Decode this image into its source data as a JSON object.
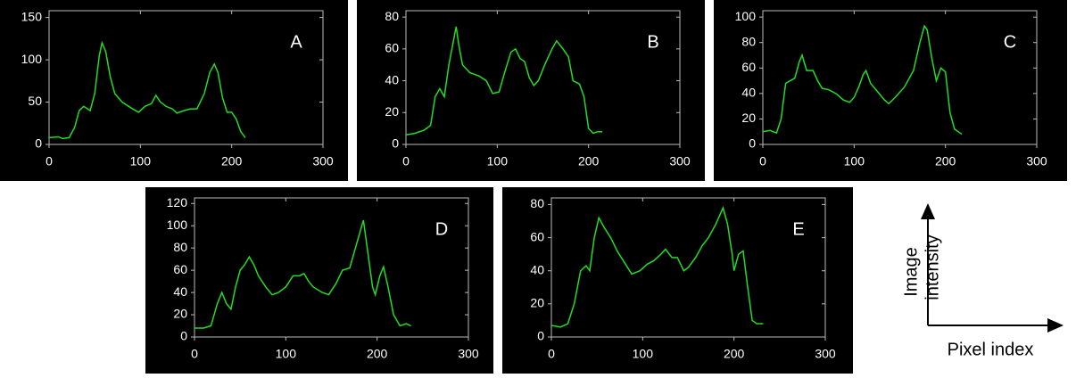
{
  "chart_data": [
    {
      "type": "line",
      "annotation": "A",
      "xlim": [
        0,
        300
      ],
      "xticks": [
        0,
        100,
        200,
        300
      ],
      "ylim": [
        0,
        158
      ],
      "yticks": [
        0,
        50,
        100,
        150
      ],
      "series": [
        {
          "color": "#22dd22",
          "x": [
            0,
            10,
            15,
            22,
            28,
            33,
            38,
            45,
            50,
            55,
            58,
            62,
            67,
            72,
            80,
            90,
            98,
            105,
            112,
            117,
            122,
            128,
            135,
            140,
            148,
            155,
            162,
            170,
            176,
            181,
            185,
            190,
            195,
            200,
            205,
            210,
            215
          ],
          "values": [
            8,
            9,
            7,
            8,
            20,
            40,
            45,
            40,
            60,
            105,
            120,
            110,
            80,
            60,
            50,
            43,
            38,
            45,
            48,
            58,
            50,
            45,
            42,
            37,
            40,
            42,
            42,
            60,
            85,
            95,
            85,
            55,
            38,
            38,
            30,
            15,
            8
          ]
        }
      ]
    },
    {
      "type": "line",
      "annotation": "B",
      "xlim": [
        0,
        300
      ],
      "xticks": [
        0,
        100,
        200,
        300
      ],
      "ylim": [
        0,
        84
      ],
      "yticks": [
        0,
        20,
        40,
        60,
        80
      ],
      "series": [
        {
          "color": "#22dd22",
          "x": [
            0,
            10,
            20,
            27,
            32,
            37,
            42,
            47,
            52,
            55,
            58,
            62,
            70,
            80,
            88,
            95,
            102,
            108,
            115,
            120,
            125,
            130,
            135,
            140,
            145,
            152,
            160,
            165,
            172,
            178,
            183,
            190,
            195,
            200,
            205,
            210,
            215
          ],
          "values": [
            6,
            7,
            9,
            12,
            30,
            35,
            30,
            50,
            65,
            74,
            62,
            50,
            45,
            43,
            40,
            32,
            33,
            45,
            58,
            60,
            54,
            52,
            42,
            37,
            40,
            50,
            60,
            65,
            60,
            55,
            40,
            38,
            30,
            10,
            7,
            8,
            8
          ]
        }
      ]
    },
    {
      "type": "line",
      "annotation": "C",
      "xlim": [
        0,
        300
      ],
      "xticks": [
        0,
        100,
        200,
        300
      ],
      "ylim": [
        0,
        105
      ],
      "yticks": [
        0,
        20,
        40,
        60,
        80,
        100
      ],
      "series": [
        {
          "color": "#22dd22",
          "x": [
            0,
            8,
            15,
            20,
            25,
            30,
            35,
            40,
            43,
            48,
            55,
            60,
            65,
            72,
            80,
            88,
            95,
            100,
            105,
            110,
            113,
            118,
            125,
            133,
            138,
            145,
            155,
            165,
            172,
            177,
            180,
            185,
            190,
            195,
            200,
            205,
            210,
            218
          ],
          "values": [
            10,
            11,
            9,
            20,
            48,
            50,
            52,
            65,
            70,
            58,
            58,
            50,
            44,
            43,
            40,
            35,
            33,
            37,
            45,
            55,
            58,
            48,
            42,
            35,
            32,
            37,
            45,
            58,
            80,
            93,
            90,
            68,
            50,
            60,
            57,
            25,
            12,
            8
          ]
        }
      ]
    },
    {
      "type": "line",
      "annotation": "D",
      "xlim": [
        0,
        300
      ],
      "xticks": [
        0,
        100,
        200,
        300
      ],
      "ylim": [
        0,
        125
      ],
      "yticks": [
        0,
        20,
        40,
        60,
        80,
        100,
        120
      ],
      "series": [
        {
          "color": "#22dd22",
          "x": [
            0,
            10,
            18,
            25,
            30,
            35,
            40,
            45,
            50,
            55,
            60,
            65,
            70,
            78,
            85,
            92,
            100,
            108,
            115,
            120,
            125,
            130,
            140,
            147,
            155,
            162,
            170,
            178,
            185,
            190,
            195,
            198,
            203,
            207,
            212,
            218,
            225,
            232,
            237
          ],
          "values": [
            8,
            8,
            10,
            30,
            40,
            30,
            25,
            45,
            60,
            65,
            72,
            65,
            55,
            45,
            38,
            40,
            45,
            55,
            55,
            57,
            50,
            45,
            40,
            38,
            48,
            60,
            62,
            85,
            105,
            75,
            45,
            38,
            55,
            63,
            45,
            20,
            10,
            12,
            10
          ]
        }
      ]
    },
    {
      "type": "line",
      "annotation": "E",
      "xlim": [
        0,
        300
      ],
      "xticks": [
        0,
        100,
        200,
        300
      ],
      "ylim": [
        0,
        84
      ],
      "yticks": [
        0,
        20,
        40,
        60,
        80
      ],
      "series": [
        {
          "color": "#22dd22",
          "x": [
            0,
            10,
            18,
            25,
            32,
            38,
            42,
            47,
            52,
            58,
            65,
            72,
            80,
            88,
            97,
            105,
            112,
            120,
            125,
            132,
            138,
            145,
            150,
            158,
            165,
            172,
            180,
            188,
            193,
            198,
            200,
            205,
            210,
            215,
            220,
            225,
            232
          ],
          "values": [
            7,
            6,
            8,
            20,
            40,
            43,
            40,
            60,
            72,
            66,
            60,
            52,
            45,
            38,
            40,
            44,
            46,
            50,
            53,
            48,
            48,
            40,
            42,
            48,
            55,
            60,
            68,
            78,
            68,
            50,
            40,
            50,
            52,
            30,
            10,
            8,
            8
          ]
        }
      ]
    }
  ],
  "key": {
    "y_label_lines": [
      "Image",
      "intensity"
    ],
    "x_label": "Pixel index"
  }
}
